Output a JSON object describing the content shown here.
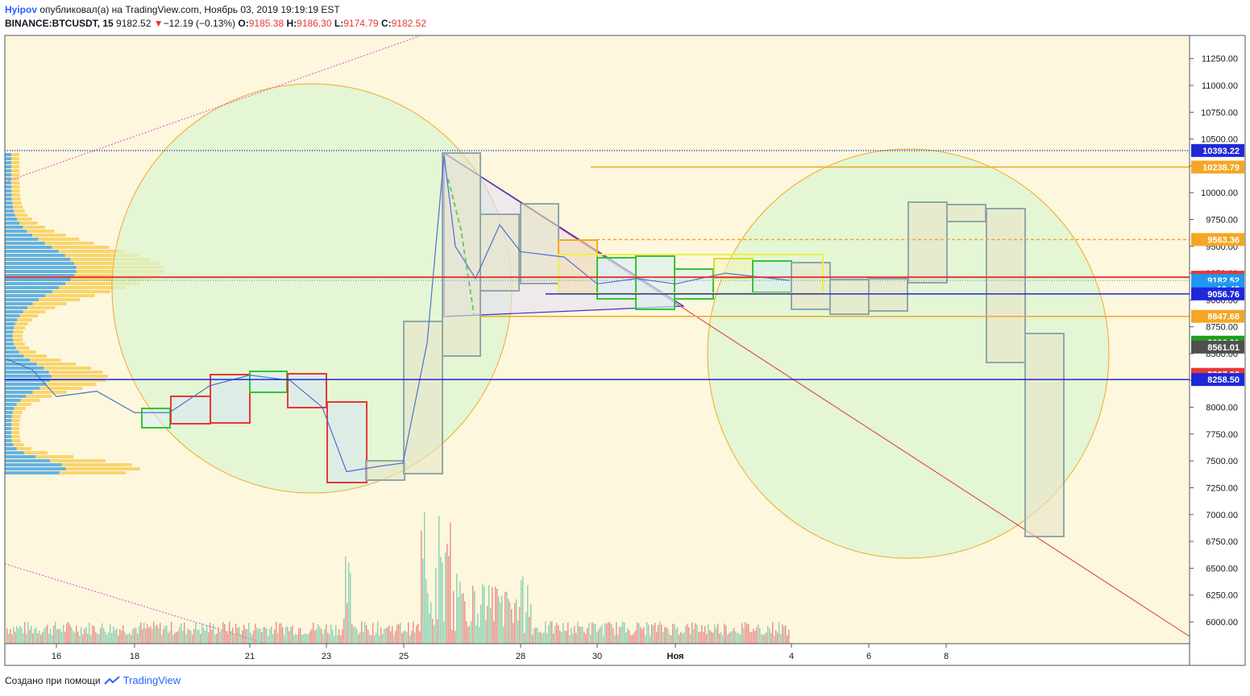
{
  "header": {
    "user": "Hyipov",
    "published": "опубликовал(а) на TradingView.com, Ноябрь 03, 2019 19:19:19 EST",
    "symbol": "BINANCE:BTCUSDT, 15",
    "last": "9182.52",
    "change_arrow": "▼",
    "change": "−12.19 (−0.13%)",
    "o_label": "O:",
    "o": "9185.38",
    "h_label": "H:",
    "h": "9186.30",
    "l_label": "L:",
    "l": "9174.79",
    "c_label": "C:",
    "c": "9182.52"
  },
  "footer": {
    "text": "Создано при помощи",
    "brand": "TradingView",
    "brand_icon": "tradingview-logo-icon"
  },
  "colors": {
    "background": "#fdf7dd",
    "red": "#e53935",
    "blue": "#1e28d9",
    "orange": "#f5a623",
    "green": "#35c435",
    "gray": "#8fa8a8"
  },
  "chart_data": {
    "type": "line",
    "symbol": "BINANCE:BTCUSDT",
    "interval": "15",
    "ylim": [
      5800,
      11450
    ],
    "y_ticks": [
      6000,
      6250,
      6500,
      6750,
      7000,
      7250,
      7500,
      7750,
      8000,
      8250,
      8500,
      8750,
      9000,
      9250,
      9500,
      9750,
      10000,
      10250,
      10500,
      10750,
      11000,
      11250
    ],
    "y_tick_labels": [
      "6000.00",
      "6250.00",
      "6500.00",
      "6750.00",
      "7000.00",
      "7250.00",
      "7500.00",
      "7750.00",
      "8000.00",
      "8250.00",
      "8500.00",
      "8750.00",
      "9000.00",
      "9250.00",
      "9500.00",
      "9750.00",
      "10000.00",
      "10250.00",
      "10500.00",
      "10750.00",
      "11000.00",
      "11250.00"
    ],
    "x_labels": [
      "16",
      "18",
      "21",
      "23",
      "25",
      "28",
      "30",
      "Ноя",
      "4",
      "6",
      "8"
    ],
    "grid": false,
    "price_series": [
      {
        "d": "14",
        "p": 8450
      },
      {
        "d": "15",
        "p": 8350
      },
      {
        "d": "16",
        "p": 8100
      },
      {
        "d": "17",
        "p": 8150
      },
      {
        "d": "18",
        "p": 7950
      },
      {
        "d": "19",
        "p": 7950
      },
      {
        "d": "20",
        "p": 8200
      },
      {
        "d": "21",
        "p": 8300
      },
      {
        "d": "22",
        "p": 8250
      },
      {
        "d": "23",
        "p": 8000
      },
      {
        "d": "23",
        "p": 7400
      },
      {
        "d": "24",
        "p": 7450
      },
      {
        "d": "25",
        "p": 7480
      },
      {
        "d": "25",
        "p": 8600
      },
      {
        "d": "26",
        "p": 10350
      },
      {
        "d": "26",
        "p": 9500
      },
      {
        "d": "27",
        "p": 9200
      },
      {
        "d": "27",
        "p": 9700
      },
      {
        "d": "28",
        "p": 9450
      },
      {
        "d": "29",
        "p": 9400
      },
      {
        "d": "30",
        "p": 9150
      },
      {
        "d": "31",
        "p": 9200
      },
      {
        "d": "Ноя",
        "p": 9150
      },
      {
        "d": "2",
        "p": 9250
      },
      {
        "d": "3",
        "p": 9182
      }
    ],
    "price_lines": [
      {
        "name": "high-dotted",
        "value": 10393.22,
        "label": "10393.22",
        "color": "#1e28d9",
        "style": "dotted"
      },
      {
        "name": "orange-solid-top",
        "value": 10238.79,
        "label": "10238.79",
        "color": "#f5a623",
        "style": "solid"
      },
      {
        "name": "orange-dashed",
        "value": 9563.36,
        "label": "9563.36",
        "color": "#f5a623",
        "style": "dashed"
      },
      {
        "name": "red-line",
        "value": 9212.35,
        "label": "9212.35",
        "color": "#e53935",
        "style": "solid"
      },
      {
        "name": "last-price",
        "value": 9182.52,
        "label": "9182.52",
        "color": "#2196f3",
        "style": "dotted"
      },
      {
        "name": "blue-short",
        "value": 9105,
        "label": "10:42",
        "color": "#2196f3",
        "style": "none"
      },
      {
        "name": "blue-mid",
        "value": 9056.76,
        "label": "9056.76",
        "color": "#1e28d9",
        "style": "solid"
      },
      {
        "name": "orange-mid",
        "value": 8847.68,
        "label": "8847.68",
        "color": "#f5a623",
        "style": "solid"
      },
      {
        "name": "green-label",
        "value": 8606.91,
        "label": "8606.91",
        "color": "#1e9e1e",
        "style": "none"
      },
      {
        "name": "gray-label",
        "value": 8561.01,
        "label": "8561.01",
        "color": "#505050",
        "style": "none"
      },
      {
        "name": "red-label",
        "value": 8307.06,
        "label": "8307.06",
        "color": "#e53935",
        "style": "none"
      },
      {
        "name": "blue-low",
        "value": 8258.5,
        "label": "8258.50",
        "color": "#1e28d9",
        "style": "solid"
      }
    ],
    "annotations": [
      "circle-left",
      "circle-right",
      "triangle",
      "downtrend-line",
      "boxes"
    ]
  }
}
